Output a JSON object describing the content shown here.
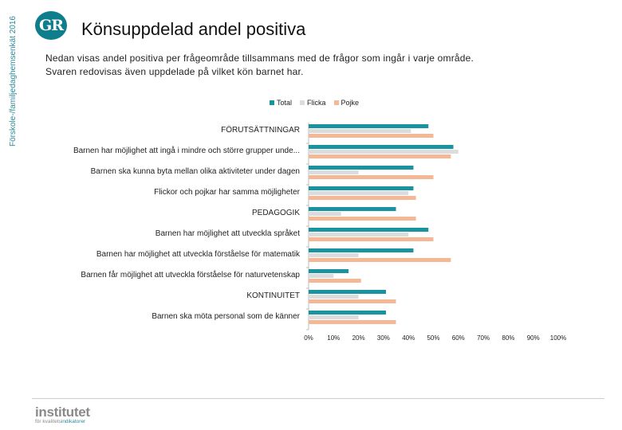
{
  "side_label": "Förskole-/familjedaghemsenkät 2016",
  "logo_text": "GR",
  "title": "Könsuppdelad andel positiva",
  "description_line1": "Nedan visas andel positiva per frågeområde tillsammans med de frågor som ingår i varje område.",
  "description_line2": "Svaren redovisas även uppdelade på vilket kön barnet har.",
  "footer": {
    "name": "institutet",
    "sub_prefix": "för kvalitets",
    "sub_highlight": "indikatorer"
  },
  "colors": {
    "total": "#1a93a1",
    "flicka": "#dcdcdc",
    "pojke": "#f4b896",
    "axis": "#bdbdbd"
  },
  "chart_data": {
    "type": "bar",
    "orientation": "horizontal",
    "categories": [
      "FÖRUTSÄTTNINGAR",
      "Barnen har möjlighet att ingå i mindre och större grupper unde...",
      "Barnen ska kunna byta mellan olika aktiviteter under dagen",
      "Flickor och pojkar har samma möjligheter",
      "PEDAGOGIK",
      "Barnen har möjlighet att utveckla språket",
      "Barnen har möjlighet att utveckla förståelse för matematik",
      "Barnen får möjlighet att utveckla förståelse för naturvetenskap",
      "KONTINUITET",
      "Barnen ska möta personal som de känner"
    ],
    "series": [
      {
        "name": "Total",
        "values": [
          48,
          58,
          42,
          42,
          35,
          48,
          42,
          16,
          31,
          31
        ]
      },
      {
        "name": "Flicka",
        "values": [
          41,
          60,
          20,
          40,
          13,
          40,
          20,
          10,
          20,
          20
        ]
      },
      {
        "name": "Pojke",
        "values": [
          50,
          57,
          50,
          43,
          43,
          50,
          57,
          21,
          35,
          35
        ]
      }
    ],
    "xlim": [
      0,
      100
    ],
    "xticks": [
      "0%",
      "10%",
      "20%",
      "30%",
      "40%",
      "50%",
      "60%",
      "70%",
      "80%",
      "90%",
      "100%"
    ],
    "legend": [
      "Total",
      "Flicka",
      "Pojke"
    ],
    "legend_position": "top"
  }
}
